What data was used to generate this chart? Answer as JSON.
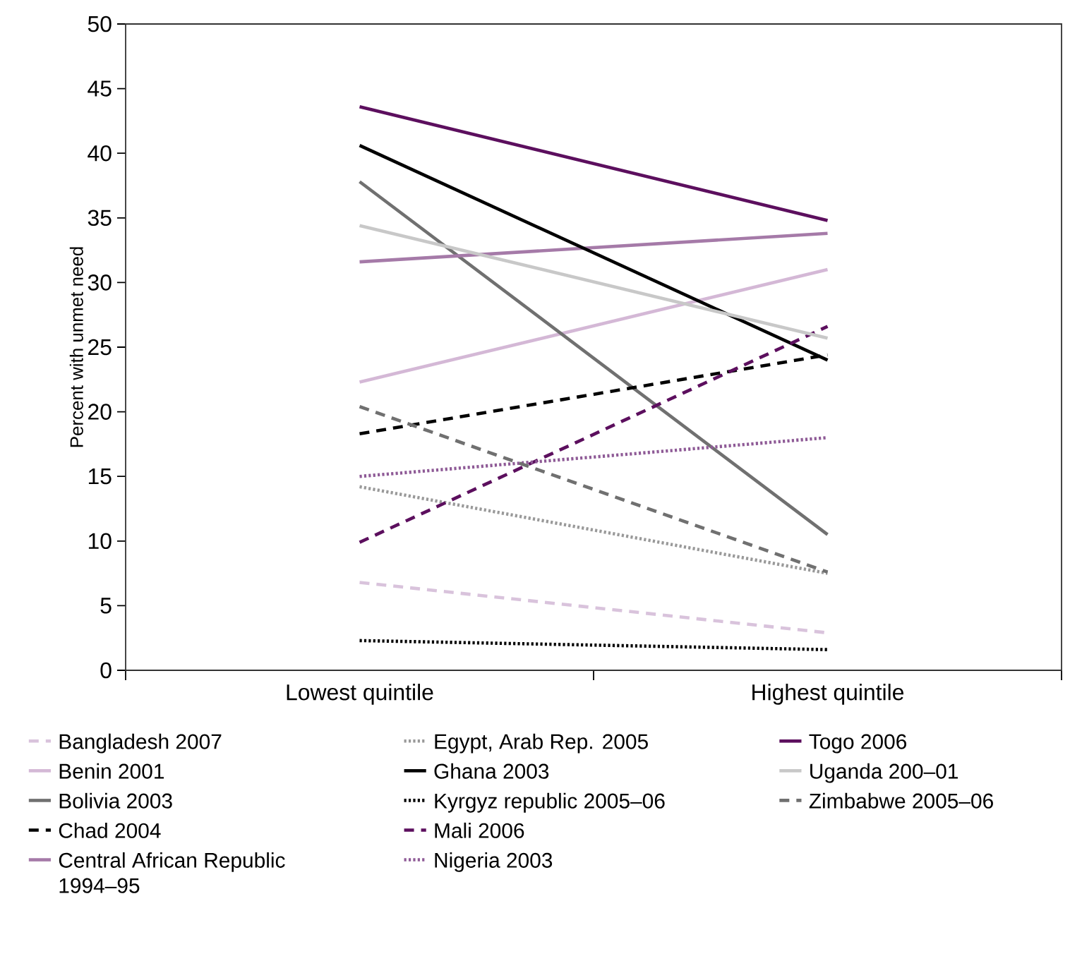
{
  "chart_data": {
    "type": "line",
    "ylabel": "Percent with unmet need",
    "categories": [
      "Lowest quintile",
      "Highest quintile"
    ],
    "ylim": [
      0,
      50
    ],
    "yticks": [
      0,
      5,
      10,
      15,
      20,
      25,
      30,
      35,
      40,
      45,
      50
    ],
    "legend": "bottom",
    "series": [
      {
        "name": "Bangladesh 2007",
        "color": "#d9c3dc",
        "line_style": "dashed",
        "values": [
          6.8,
          2.9
        ]
      },
      {
        "name": "Benin 2001",
        "color": "#d4b8d6",
        "line_style": "solid",
        "values": [
          22.3,
          31.0
        ]
      },
      {
        "name": "Bolivia 2003",
        "color": "#707070",
        "line_style": "solid",
        "values": [
          37.8,
          10.5
        ]
      },
      {
        "name": "Chad 2004",
        "color": "#000000",
        "line_style": "dashed",
        "values": [
          18.3,
          24.4
        ]
      },
      {
        "name": "Central African Republic 1994–95",
        "color": "#a57aa8",
        "line_style": "solid",
        "values": [
          31.6,
          33.8
        ]
      },
      {
        "name": "Egypt, Arab Rep. 2005",
        "color": "#999999",
        "line_style": "dotted",
        "values": [
          14.2,
          7.5
        ]
      },
      {
        "name": "Ghana 2003",
        "color": "#000000",
        "line_style": "solid",
        "values": [
          40.6,
          24.0
        ]
      },
      {
        "name": "Kyrgyz republic 2005–06",
        "color": "#000000",
        "line_style": "dotted",
        "values": [
          2.3,
          1.6
        ]
      },
      {
        "name": "Mali 2006",
        "color": "#5c0f5e",
        "line_style": "dashed",
        "values": [
          9.9,
          26.6
        ]
      },
      {
        "name": "Nigeria 2003",
        "color": "#8e5a96",
        "line_style": "dotted",
        "values": [
          15.0,
          18.0
        ]
      },
      {
        "name": "Togo 2006",
        "color": "#5c0f5e",
        "line_style": "solid",
        "values": [
          43.6,
          34.8
        ]
      },
      {
        "name": "Uganda 200–01",
        "color": "#c8c8c8",
        "line_style": "solid",
        "values": [
          34.4,
          25.7
        ]
      },
      {
        "name": "Zimbabwe 2005–06",
        "color": "#707070",
        "line_style": "dashed",
        "values": [
          20.4,
          7.6
        ]
      }
    ]
  }
}
